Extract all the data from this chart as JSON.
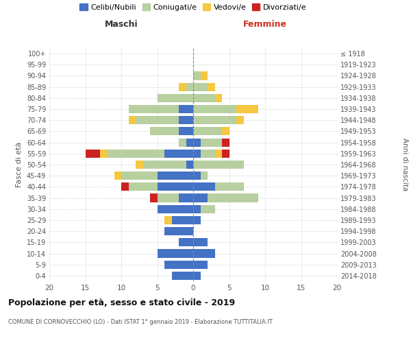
{
  "age_groups": [
    "0-4",
    "5-9",
    "10-14",
    "15-19",
    "20-24",
    "25-29",
    "30-34",
    "35-39",
    "40-44",
    "45-49",
    "50-54",
    "55-59",
    "60-64",
    "65-69",
    "70-74",
    "75-79",
    "80-84",
    "85-89",
    "90-94",
    "95-99",
    "100+"
  ],
  "birth_years": [
    "2014-2018",
    "2009-2013",
    "2004-2008",
    "1999-2003",
    "1994-1998",
    "1989-1993",
    "1984-1988",
    "1979-1983",
    "1974-1978",
    "1969-1973",
    "1964-1968",
    "1959-1963",
    "1954-1958",
    "1949-1953",
    "1944-1948",
    "1939-1943",
    "1934-1938",
    "1929-1933",
    "1924-1928",
    "1919-1923",
    "≤ 1918"
  ],
  "males": {
    "celibi": [
      3,
      4,
      5,
      2,
      4,
      3,
      5,
      2,
      5,
      5,
      1,
      4,
      1,
      2,
      2,
      2,
      0,
      0,
      0,
      0,
      0
    ],
    "coniugati": [
      0,
      0,
      0,
      0,
      0,
      0,
      0,
      3,
      4,
      5,
      6,
      8,
      1,
      4,
      6,
      7,
      5,
      1,
      0,
      0,
      0
    ],
    "vedovi": [
      0,
      0,
      0,
      0,
      0,
      1,
      0,
      0,
      0,
      1,
      1,
      1,
      0,
      0,
      1,
      0,
      0,
      1,
      0,
      0,
      0
    ],
    "divorziati": [
      0,
      0,
      0,
      0,
      0,
      0,
      0,
      1,
      1,
      0,
      0,
      2,
      0,
      0,
      0,
      0,
      0,
      0,
      0,
      0,
      0
    ]
  },
  "females": {
    "nubili": [
      1,
      2,
      3,
      2,
      0,
      1,
      1,
      2,
      3,
      1,
      0,
      1,
      1,
      0,
      0,
      0,
      0,
      0,
      0,
      0,
      0
    ],
    "coniugate": [
      0,
      0,
      0,
      0,
      0,
      0,
      2,
      7,
      4,
      1,
      7,
      2,
      3,
      4,
      6,
      6,
      3,
      2,
      1,
      0,
      0
    ],
    "vedove": [
      0,
      0,
      0,
      0,
      0,
      0,
      0,
      0,
      0,
      0,
      0,
      1,
      0,
      1,
      1,
      3,
      1,
      1,
      1,
      0,
      0
    ],
    "divorziate": [
      0,
      0,
      0,
      0,
      0,
      0,
      0,
      0,
      0,
      0,
      0,
      1,
      1,
      0,
      0,
      0,
      0,
      0,
      0,
      0,
      0
    ]
  },
  "colors": {
    "celibi": "#4472c4",
    "coniugati": "#b8cfa0",
    "vedovi": "#f5c842",
    "divorziati": "#cc2222"
  },
  "title": "Popolazione per età, sesso e stato civile - 2019",
  "subtitle": "COMUNE DI CORNOVECCHIO (LO) - Dati ISTAT 1° gennaio 2019 - Elaborazione TUTTITALIA.IT",
  "xlabel_left": "Maschi",
  "xlabel_right": "Femmine",
  "ylabel_left": "Fasce di età",
  "ylabel_right": "Anni di nascita",
  "xlim": 20,
  "legend_labels": [
    "Celibi/Nubili",
    "Coniugati/e",
    "Vedovi/e",
    "Divorziati/e"
  ],
  "background_color": "#ffffff"
}
